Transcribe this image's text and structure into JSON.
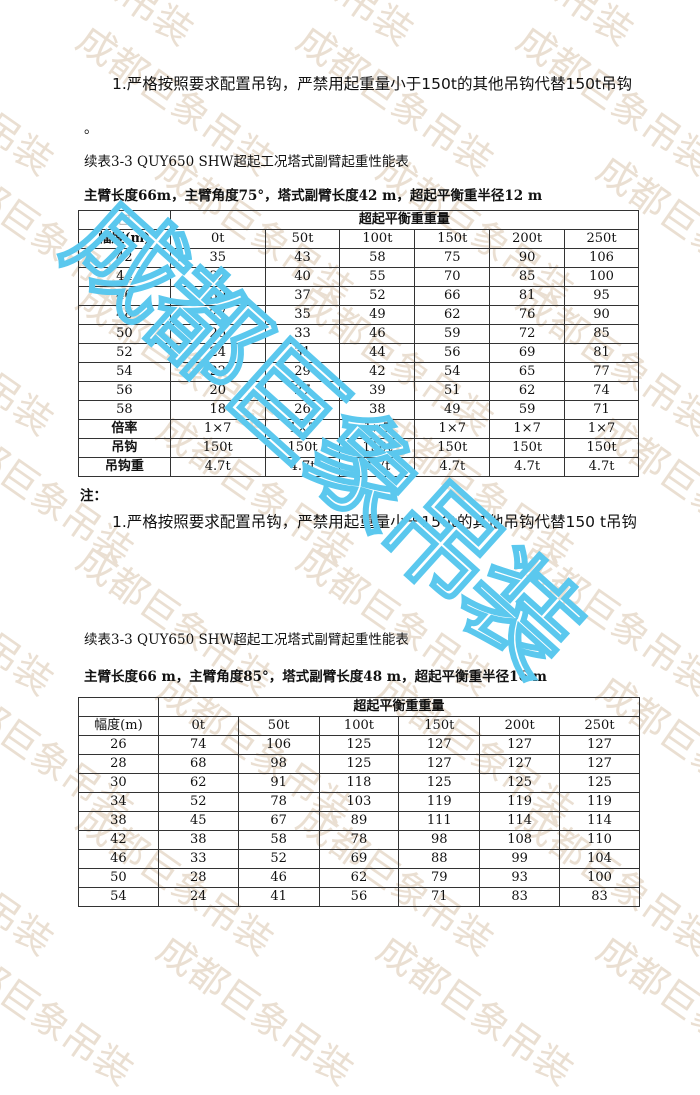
{
  "watermark": {
    "text": "成都巨象吊装",
    "color": "#5bc8ee",
    "bg_color": "#eadfd2"
  },
  "note1": "1.严格按照要求配置吊钩，严禁用起重量小于150t的其他吊钩代替150t吊钩",
  "note1_end": "。",
  "table1": {
    "caption": "续表3-3 QUY650 SHW超起工况塔式副臂起重性能表",
    "subtitle": "主臂长度66m，主臂角度75°，塔式副臂长度42 m，超起平衡重半径12 m",
    "corner": "□",
    "group_header": "超起平衡重重量",
    "row_header": "幅度(m)",
    "columns": [
      "0t",
      "50t",
      "100t",
      "150t",
      "200t",
      "250t"
    ],
    "rows": [
      [
        "42",
        "35",
        "43",
        "58",
        "75",
        "90",
        "106"
      ],
      [
        "44",
        "32",
        "40",
        "55",
        "70",
        "85",
        "100"
      ],
      [
        "46",
        "30",
        "37",
        "52",
        "66",
        "81",
        "95"
      ],
      [
        "48",
        "27",
        "35",
        "49",
        "62",
        "76",
        "90"
      ],
      [
        "50",
        "26",
        "33",
        "46",
        "59",
        "72",
        "85"
      ],
      [
        "52",
        "24",
        "31",
        "44",
        "56",
        "69",
        "81"
      ],
      [
        "54",
        "22",
        "29",
        "42",
        "54",
        "65",
        "77"
      ],
      [
        "56",
        "20",
        "27",
        "39",
        "51",
        "62",
        "74"
      ],
      [
        "58",
        "18",
        "26",
        "38",
        "49",
        "59",
        "71"
      ],
      [
        "倍率",
        "1×7",
        "1×7",
        "1×7",
        "1×7",
        "1×7",
        "1×7"
      ],
      [
        "吊钩",
        "150t",
        "150t",
        "150t",
        "150t",
        "150t",
        "150t"
      ],
      [
        "吊钩重",
        "4.7t",
        "4.7t",
        "4.7t",
        "4.7t",
        "4.7t",
        "4.7t"
      ]
    ]
  },
  "note_label": "注：",
  "note2": "1.严格按照要求配置吊钩，严禁用起重量小于150t的其他吊钩代替150 t吊钩",
  "table2": {
    "caption": "续表3-3 QUY650 SHW超起工况塔式副臂起重性能表",
    "subtitle": "主臂长度66 m，主臂角度85°，塔式副臂长度48 m，超起平衡重半径16 m",
    "group_header": "超起平衡重重量",
    "row_header": "幅度(m)",
    "columns": [
      "0t",
      "50t",
      "100t",
      "150t",
      "200t",
      "250t"
    ],
    "rows": [
      [
        "26",
        "74",
        "106",
        "125",
        "127",
        "127",
        "127"
      ],
      [
        "28",
        "68",
        "98",
        "125",
        "127",
        "127",
        "127"
      ],
      [
        "30",
        "62",
        "91",
        "118",
        "125",
        "125",
        "125"
      ],
      [
        "34",
        "52",
        "78",
        "103",
        "119",
        "119",
        "119"
      ],
      [
        "38",
        "45",
        "67",
        "89",
        "111",
        "114",
        "114"
      ],
      [
        "42",
        "38",
        "58",
        "78",
        "98",
        "108",
        "110"
      ],
      [
        "46",
        "33",
        "52",
        "69",
        "88",
        "99",
        "104"
      ],
      [
        "50",
        "28",
        "46",
        "62",
        "79",
        "93",
        "100"
      ],
      [
        "54",
        "24",
        "41",
        "56",
        "71",
        "83",
        "83"
      ]
    ]
  }
}
